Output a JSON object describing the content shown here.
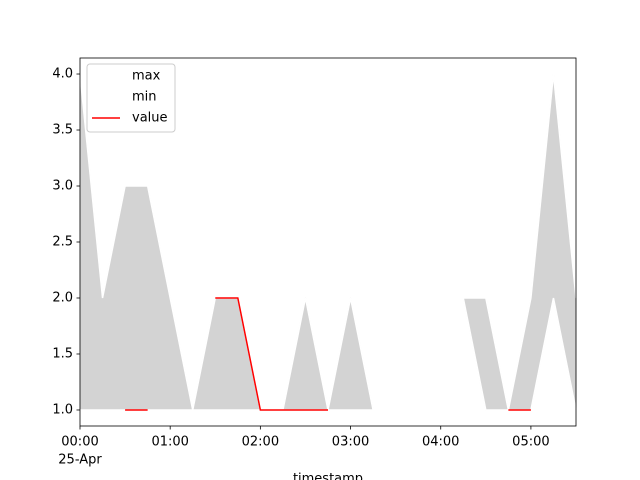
{
  "chart_data": {
    "type": "line",
    "x_label": "timestamp",
    "x_date_label": "25-Apr",
    "x": [
      "00:00",
      "00:15",
      "00:30",
      "00:45",
      "01:00",
      "01:15",
      "01:30",
      "01:45",
      "02:00",
      "02:15",
      "02:30",
      "02:45",
      "03:00",
      "03:15",
      "03:30",
      "03:45",
      "04:00",
      "04:15",
      "04:30",
      "04:45",
      "05:00",
      "05:15",
      "05:30"
    ],
    "series": [
      {
        "name": "max",
        "color": "white",
        "values": [
          4,
          2,
          3,
          3,
          2,
          1,
          2,
          2,
          1,
          1,
          2,
          1,
          2,
          1,
          1,
          1,
          2,
          2,
          2,
          1,
          2,
          4,
          2
        ]
      },
      {
        "name": "min",
        "color": "white",
        "values": [
          1,
          1,
          1,
          1,
          1,
          1,
          1,
          1,
          1,
          1,
          1,
          1,
          1,
          1,
          1,
          1,
          2,
          2,
          1,
          1,
          1,
          2,
          1
        ]
      },
      {
        "name": "value",
        "color": "red",
        "values": [
          null,
          null,
          1,
          1,
          null,
          null,
          2,
          2,
          1,
          1,
          1,
          1,
          null,
          null,
          null,
          null,
          null,
          null,
          null,
          1,
          1,
          null,
          null
        ]
      }
    ],
    "fill_between": {
      "upper": "max",
      "lower": "min",
      "color": "lightgrey"
    },
    "xlim": [
      "00:00",
      "05:30"
    ],
    "xticks": [
      "00:00",
      "01:00",
      "02:00",
      "03:00",
      "04:00",
      "05:00"
    ],
    "ylim": [
      0.857,
      4.143
    ],
    "yticks": [
      {
        "value": 1,
        "label": "1.0"
      },
      {
        "value": 1.5,
        "label": "1.5"
      },
      {
        "value": 2,
        "label": "2.0"
      },
      {
        "value": 2.5,
        "label": "2.5"
      },
      {
        "value": 3,
        "label": "3.0"
      },
      {
        "value": 3.5,
        "label": "3.5"
      },
      {
        "value": 4,
        "label": "4.0"
      }
    ],
    "legend": "upper left"
  }
}
